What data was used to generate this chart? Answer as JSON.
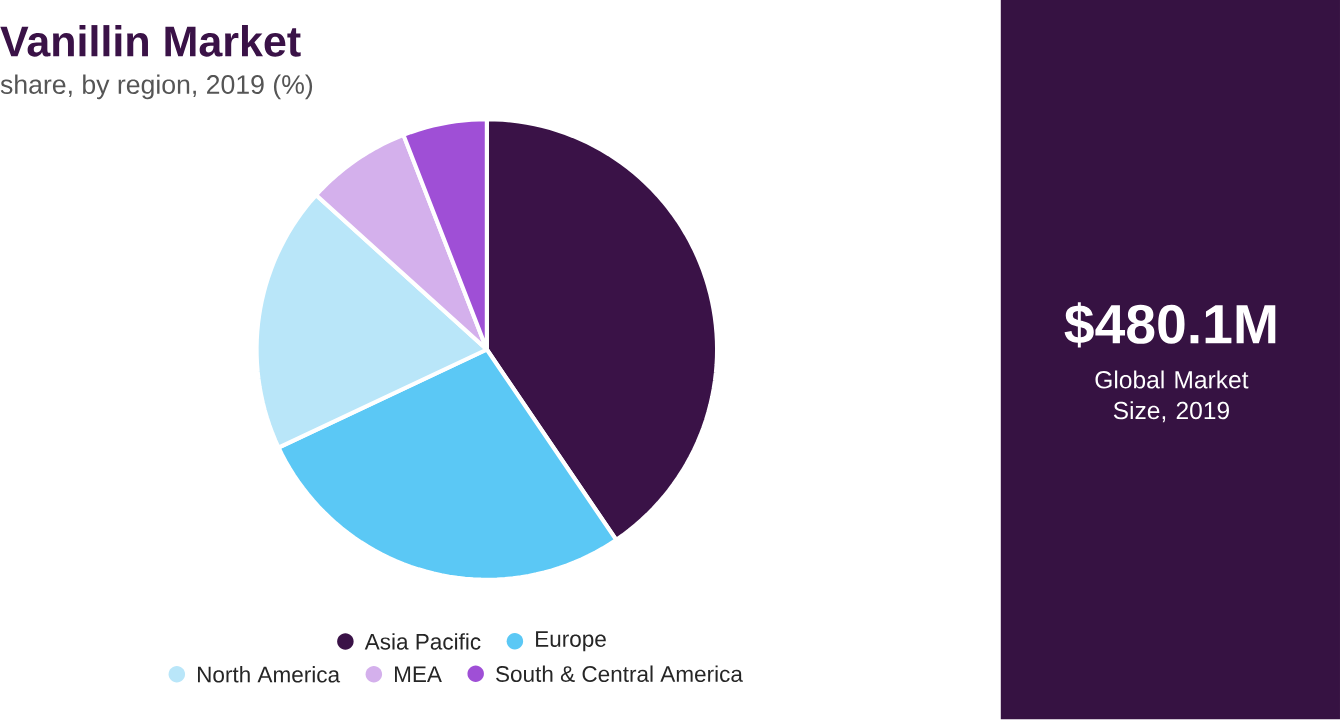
{
  "chart_data": {
    "type": "pie",
    "title": "Vanillin Market",
    "subtitle": "share, by region, 2019 (%)",
    "categories": [
      "Asia Pacific",
      "Europe",
      "North America",
      "MEA",
      "South & Central America"
    ],
    "values": [
      40.5,
      27.5,
      18.7,
      7.4,
      5.9
    ],
    "colors": [
      "#3a1247",
      "#5bc8f5",
      "#b9e6f9",
      "#d4b0ec",
      "#9f4fd6"
    ],
    "legend": "bottom",
    "annotations": [
      "$480.1M",
      "Global Market Size, 2019"
    ]
  }
}
